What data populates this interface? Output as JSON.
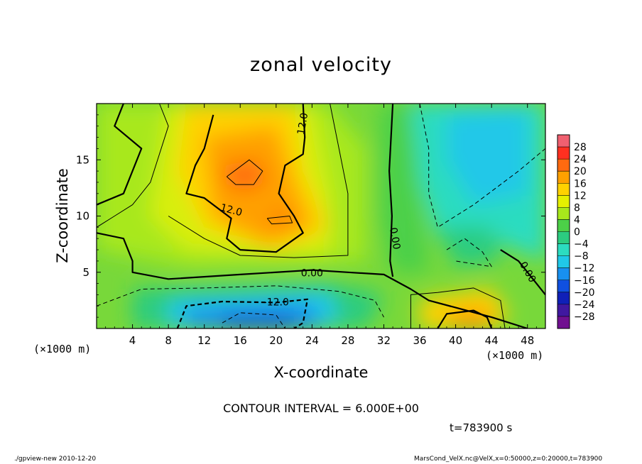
{
  "chart_data": {
    "type": "heatmap",
    "title": "zonal velocity",
    "xlabel": "X-coordinate",
    "ylabel": "Z-coordinate",
    "x_unit": "(×1000 m)",
    "z_unit": "(×1000 m)",
    "xlim": [
      0,
      50
    ],
    "ylim": [
      0,
      20
    ],
    "x_ticks": [
      4,
      8,
      12,
      16,
      20,
      24,
      28,
      32,
      36,
      40,
      44,
      48
    ],
    "y_ticks": [
      5,
      10,
      15
    ],
    "colorbar_levels": [
      28,
      24,
      20,
      16,
      12,
      8,
      4,
      0,
      -4,
      -8,
      -12,
      -16,
      -20,
      -24,
      -28
    ],
    "colorbar_colors": [
      "#f06070",
      "#ff3020",
      "#ff6a10",
      "#ffa000",
      "#ffd200",
      "#e6f000",
      "#a8e81c",
      "#4cd048",
      "#2ccc80",
      "#2cdcc0",
      "#20c8e8",
      "#1890f0",
      "#1050e0",
      "#1020b8",
      "#4018a0",
      "#701090"
    ],
    "contour_interval": "CONTOUR INTERVAL = 6.000E+00",
    "contour_labels": [
      {
        "text": "12.0",
        "x": 23.0,
        "z": 18.2,
        "angle": -80
      },
      {
        "text": "12.0",
        "x": 15.0,
        "z": 10.5,
        "angle": 15
      },
      {
        "text": "0.00",
        "x": 24.0,
        "z": 4.9,
        "angle": 0
      },
      {
        "text": "-12.0",
        "x": 20.0,
        "z": 2.3,
        "angle": 0
      },
      {
        "text": "0.00",
        "x": 33.2,
        "z": 8.0,
        "angle": 80
      },
      {
        "text": "0.00",
        "x": 48.0,
        "z": 5.0,
        "angle": 60
      }
    ],
    "time_label": "t=783900 s",
    "grid": false
  },
  "footer": {
    "left": "./gpview-new  2010-12-20",
    "right": "MarsCond_VelX.nc@VelX,x=0:50000,z=0:20000,t=783900"
  }
}
